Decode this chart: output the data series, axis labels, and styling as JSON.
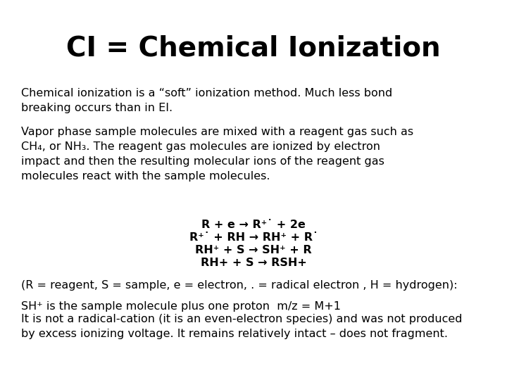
{
  "title": "CI = Chemical Ionization",
  "title_fontsize": 28,
  "body_fontsize": 11.5,
  "equations_fontsize": 11.5,
  "background_color": "#ffffff",
  "text_color": "#000000",
  "para1": "Chemical ionization is a “soft” ionization method. Much less bond\nbreaking occurs than in EI.",
  "para2": "Vapor phase sample molecules are mixed with a reagent gas such as\nCH₄, or NH₃. The reagent gas molecules are ionized by electron\nimpact and then the resulting molecular ions of the reagent gas\nmolecules react with the sample molecules.",
  "eq1": "R + e → R⁺˙ + 2e",
  "eq2": "R⁺˙ + RH → RH⁺ + R˙",
  "eq3": "RH⁺ + S → SH⁺ + R",
  "eq4": "RH+ + S → RSH+",
  "legend": "(R = reagent, S = sample, e = electron, . = radical electron , H = hydrogen):",
  "footer1": "SH⁺ is the sample molecule plus one proton  m/z = M+1",
  "footer2": "It is not a radical-cation (it is an even-electron species) and was not produced\nby excess ionizing voltage. It remains relatively intact – does not fragment."
}
